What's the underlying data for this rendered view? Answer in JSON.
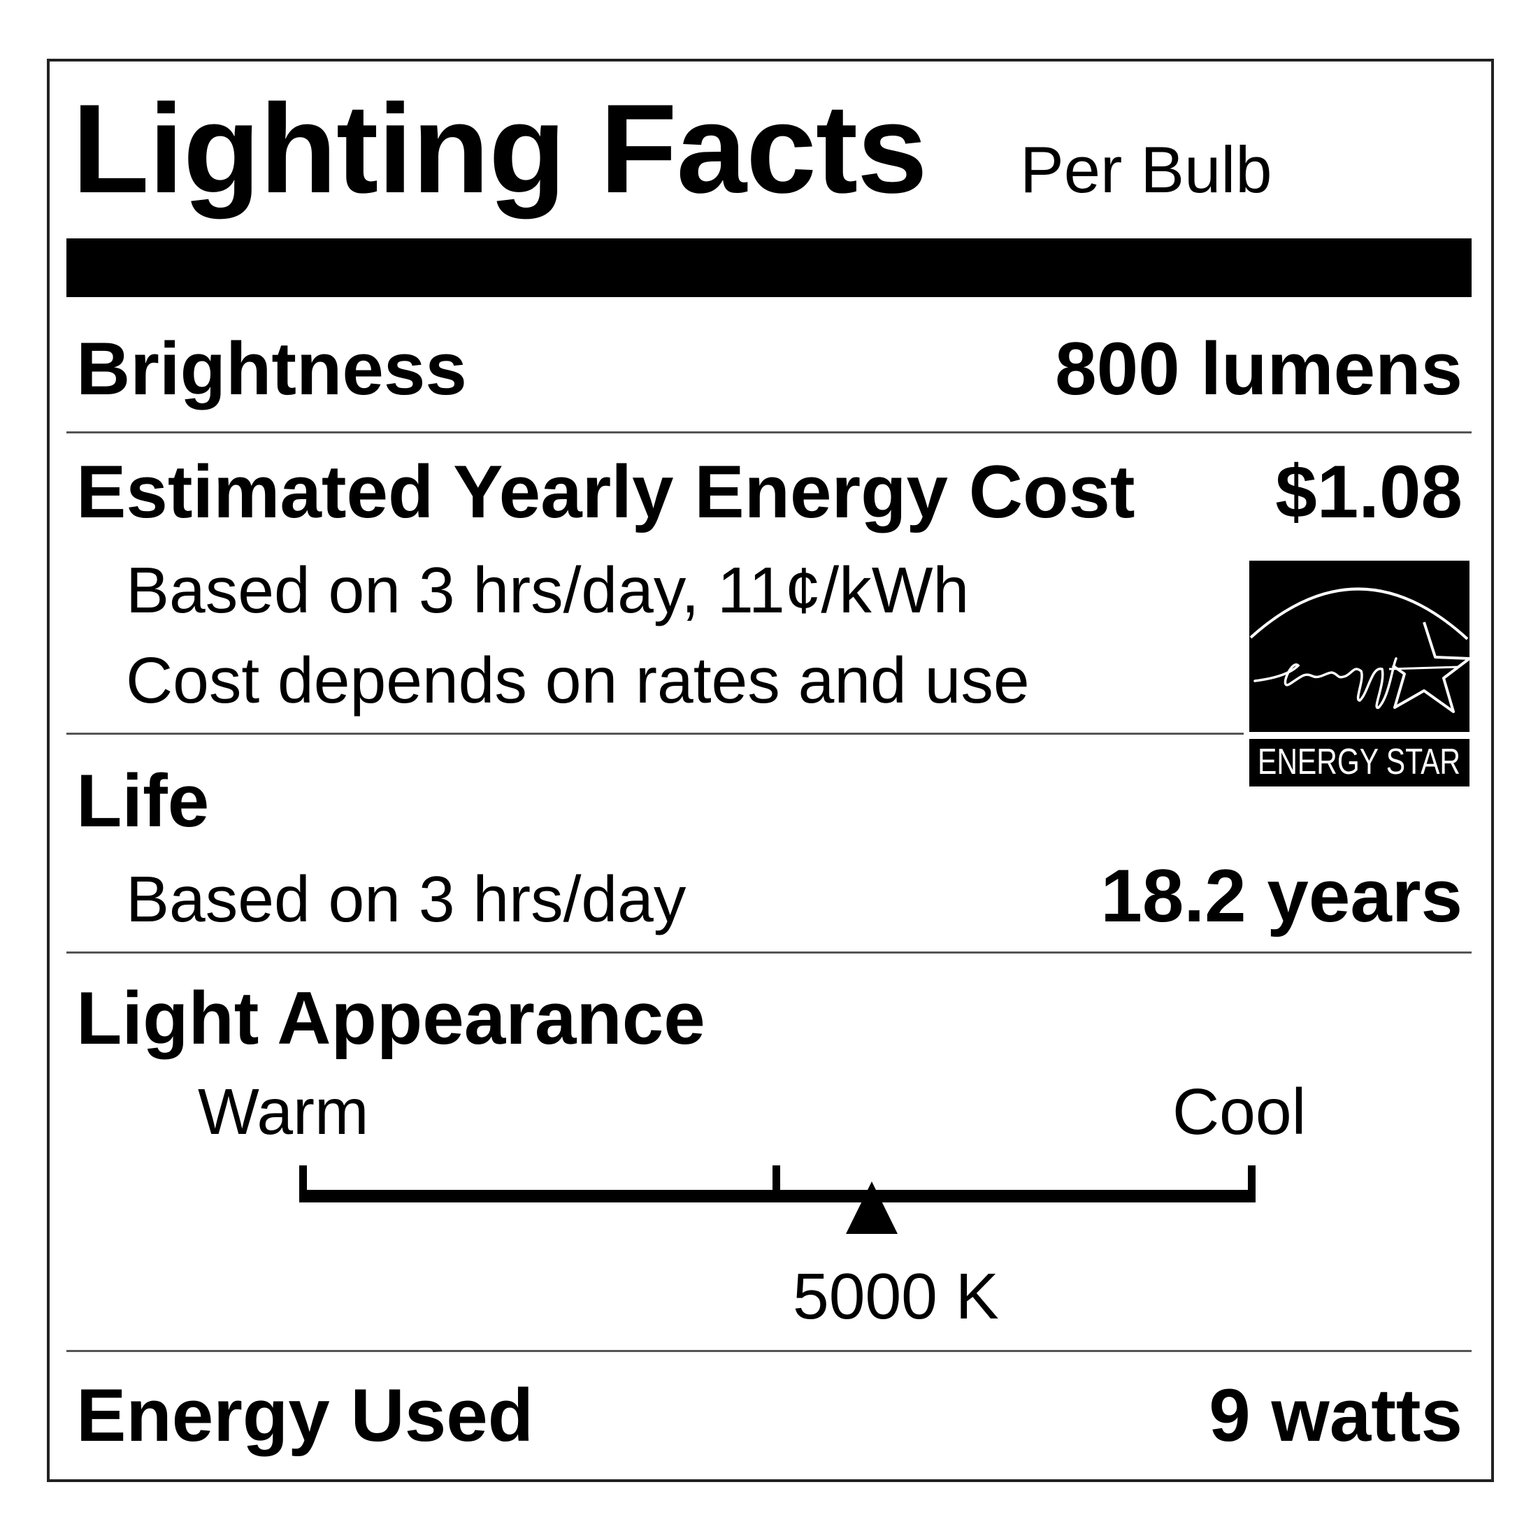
{
  "label": {
    "title": "Lighting Facts",
    "subtitle": "Per Bulb",
    "brightness": {
      "label": "Brightness",
      "value": "800 lumens"
    },
    "energy_cost": {
      "label": "Estimated Yearly Energy Cost",
      "value": "$1.08",
      "note1": "Based on 3 hrs/day, 11¢/kWh",
      "note2": "Cost depends on rates and use"
    },
    "life": {
      "label": "Life",
      "note": "Based on 3 hrs/day",
      "value": "18.2 years"
    },
    "light_appearance": {
      "label": "Light Appearance",
      "warm": "Warm",
      "cool": "Cool",
      "value": "5000 K",
      "position_fraction": 0.6
    },
    "energy_used": {
      "label": "Energy Used",
      "value": "9 watts"
    },
    "logo": {
      "script_text": "energy",
      "caption": "ENERGY STAR"
    }
  }
}
